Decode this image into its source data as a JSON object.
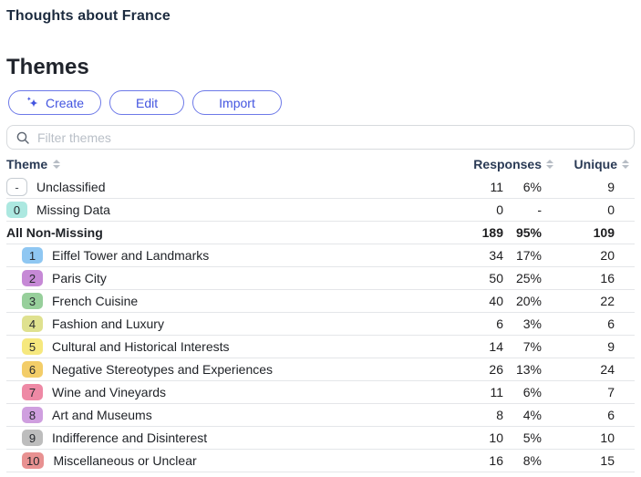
{
  "page_title": "Thoughts about France",
  "section_title": "Themes",
  "toolbar": {
    "create_label": "Create",
    "edit_label": "Edit",
    "import_label": "Import"
  },
  "filter": {
    "placeholder": "Filter themes"
  },
  "colors": {
    "accent": "#4355e0",
    "accent_border": "#6d79e8",
    "header_text": "#2a3a55",
    "row_border": "#e4e6e9"
  },
  "table": {
    "columns": {
      "theme": "Theme",
      "responses": "Responses",
      "unique": "Unique"
    },
    "rows": [
      {
        "badge": "-",
        "badge_style": "outline",
        "badge_color": "",
        "name": "Unclassified",
        "responses": "11",
        "pct": "6%",
        "unique": "9",
        "indent": false,
        "bold": false
      },
      {
        "badge": "0",
        "badge_style": "fill",
        "badge_color": "#ace8e0",
        "name": "Missing Data",
        "responses": "0",
        "pct": "-",
        "unique": "0",
        "indent": false,
        "bold": false
      },
      {
        "badge": "",
        "badge_style": "none",
        "badge_color": "",
        "name": "All Non-Missing",
        "responses": "189",
        "pct": "95%",
        "unique": "109",
        "indent": false,
        "bold": true
      },
      {
        "badge": "1",
        "badge_style": "fill",
        "badge_color": "#8fc7f2",
        "name": "Eiffel Tower and Landmarks",
        "responses": "34",
        "pct": "17%",
        "unique": "20",
        "indent": true,
        "bold": false
      },
      {
        "badge": "2",
        "badge_style": "fill",
        "badge_color": "#c689d6",
        "name": "Paris City",
        "responses": "50",
        "pct": "25%",
        "unique": "16",
        "indent": true,
        "bold": false
      },
      {
        "badge": "3",
        "badge_style": "fill",
        "badge_color": "#97cf9b",
        "name": "French Cuisine",
        "responses": "40",
        "pct": "20%",
        "unique": "22",
        "indent": true,
        "bold": false
      },
      {
        "badge": "4",
        "badge_style": "fill",
        "badge_color": "#dfe18f",
        "name": "Fashion and Luxury",
        "responses": "6",
        "pct": "3%",
        "unique": "6",
        "indent": true,
        "bold": false
      },
      {
        "badge": "5",
        "badge_style": "fill",
        "badge_color": "#f6e87e",
        "name": "Cultural and Historical Interests",
        "responses": "14",
        "pct": "7%",
        "unique": "9",
        "indent": true,
        "bold": false
      },
      {
        "badge": "6",
        "badge_style": "fill",
        "badge_color": "#f3cd68",
        "name": "Negative Stereotypes and Experiences",
        "responses": "26",
        "pct": "13%",
        "unique": "24",
        "indent": true,
        "bold": false
      },
      {
        "badge": "7",
        "badge_style": "fill",
        "badge_color": "#ee89a5",
        "name": "Wine and Vineyards",
        "responses": "11",
        "pct": "6%",
        "unique": "7",
        "indent": true,
        "bold": false
      },
      {
        "badge": "8",
        "badge_style": "fill",
        "badge_color": "#cf9fdf",
        "name": "Art and Museums",
        "responses": "8",
        "pct": "4%",
        "unique": "6",
        "indent": true,
        "bold": false
      },
      {
        "badge": "9",
        "badge_style": "fill",
        "badge_color": "#bdbdbd",
        "name": "Indifference and Disinterest",
        "responses": "10",
        "pct": "5%",
        "unique": "10",
        "indent": true,
        "bold": false
      },
      {
        "badge": "10",
        "badge_style": "fill",
        "badge_color": "#e89191",
        "name": "Miscellaneous or Unclear",
        "responses": "16",
        "pct": "8%",
        "unique": "15",
        "indent": true,
        "bold": false
      }
    ]
  }
}
